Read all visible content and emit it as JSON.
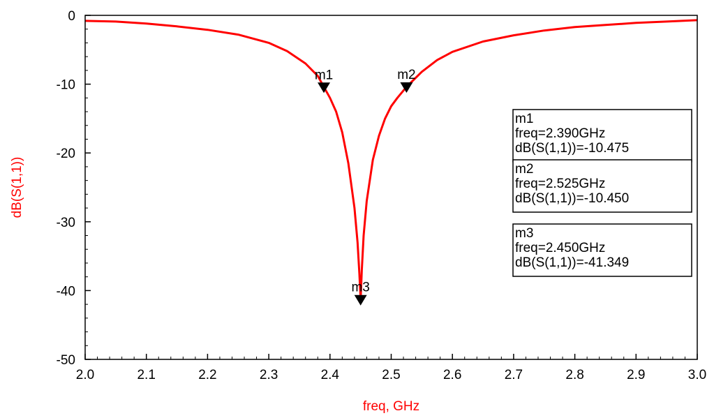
{
  "colors": {
    "trace": "#ff0000",
    "axis_title": "#ff0000",
    "frame": "#000000",
    "marker": "#000000",
    "background": "#ffffff"
  },
  "chart_data": {
    "type": "line",
    "xlabel": "freq, GHz",
    "ylabel": "dB(S(1,1))",
    "xlim": [
      2.0,
      3.0
    ],
    "ylim": [
      -50,
      0
    ],
    "x_ticks": [
      2.0,
      2.1,
      2.2,
      2.3,
      2.4,
      2.5,
      2.6,
      2.7,
      2.8,
      2.9,
      3.0
    ],
    "x_tick_labels": [
      "2.0",
      "2.1",
      "2.2",
      "2.3",
      "2.4",
      "2.5",
      "2.6",
      "2.7",
      "2.8",
      "2.9",
      "3.0"
    ],
    "y_ticks": [
      0,
      -10,
      -20,
      -30,
      -40,
      -50
    ],
    "y_tick_labels": [
      "0",
      "-10",
      "-20",
      "-30",
      "-40",
      "-50"
    ],
    "y_minor_step": 2,
    "grid": false,
    "series": [
      {
        "x": [
          2.0,
          2.05,
          2.1,
          2.15,
          2.2,
          2.25,
          2.3,
          2.33,
          2.36,
          2.38,
          2.39,
          2.4,
          2.41,
          2.42,
          2.43,
          2.44,
          2.445,
          2.448,
          2.45,
          2.452,
          2.455,
          2.46,
          2.47,
          2.48,
          2.49,
          2.5,
          2.51,
          2.525,
          2.55,
          2.575,
          2.6,
          2.65,
          2.7,
          2.75,
          2.8,
          2.85,
          2.9,
          2.95,
          3.0
        ],
        "values": [
          -0.8,
          -0.9,
          -1.2,
          -1.6,
          -2.1,
          -2.8,
          -4.0,
          -5.2,
          -7.0,
          -8.8,
          -10.4,
          -12.0,
          -14.0,
          -17.0,
          -21.5,
          -28.0,
          -33.0,
          -37.5,
          -41.3,
          -37.0,
          -32.0,
          -27.0,
          -21.0,
          -17.5,
          -15.0,
          -13.2,
          -12.0,
          -10.4,
          -8.2,
          -6.5,
          -5.3,
          -3.8,
          -2.9,
          -2.2,
          -1.7,
          -1.4,
          -1.1,
          -0.9,
          -0.7
        ]
      }
    ],
    "markers": [
      {
        "name": "m1",
        "freq": 2.39,
        "value": -10.475,
        "line1": "m1",
        "line2": "freq=2.390GHz",
        "line3": "dB(S(1,1))=-10.475"
      },
      {
        "name": "m2",
        "freq": 2.525,
        "value": -10.45,
        "line1": "m2",
        "line2": "freq=2.525GHz",
        "line3": "dB(S(1,1))=-10.450"
      },
      {
        "name": "m3",
        "freq": 2.45,
        "value": -41.349,
        "line1": "m3",
        "line2": "freq=2.450GHz",
        "line3": "dB(S(1,1))=-41.349"
      }
    ],
    "readout_placement": "right"
  }
}
